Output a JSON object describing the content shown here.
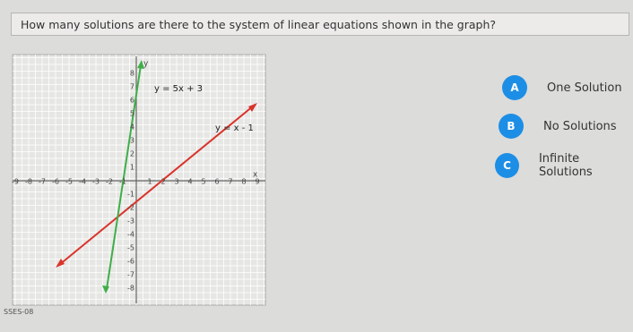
{
  "question": "How many solutions are there to the system of linear equations shown in the graph?",
  "graph": {
    "equations": [
      "y = 5x + 3",
      "y = x - 1"
    ],
    "axis_labels": {
      "x": "x",
      "y": "y"
    },
    "x_ticks": [
      -9,
      -8,
      -7,
      -6,
      -5,
      -4,
      -3,
      -2,
      -1,
      1,
      2,
      3,
      4,
      5,
      6,
      7,
      8,
      9
    ],
    "y_ticks": [
      8,
      7,
      6,
      5,
      4,
      3,
      2,
      1,
      -1,
      -2,
      -3,
      -4,
      -5,
      -6,
      -7,
      -8
    ]
  },
  "choices": [
    {
      "letter": "A",
      "text": "One Solution"
    },
    {
      "letter": "B",
      "text": "No Solutions"
    },
    {
      "letter": "C",
      "text": "Infinite Solutions"
    }
  ],
  "footer": "SSES-08"
}
